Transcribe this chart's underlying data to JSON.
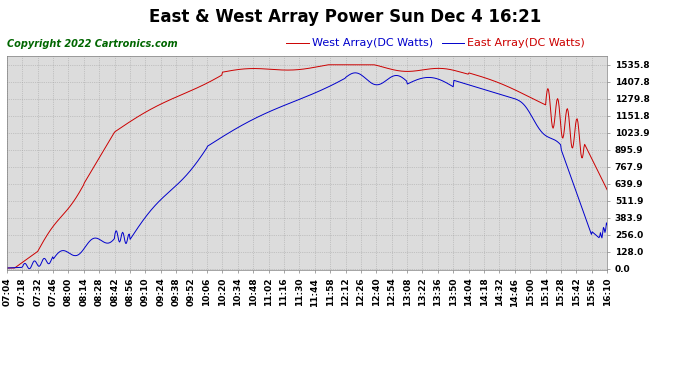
{
  "title": "East & West Array Power Sun Dec 4 16:21",
  "copyright": "Copyright 2022 Cartronics.com",
  "legend_east": "East Array(DC Watts)",
  "legend_west": "West Array(DC Watts)",
  "east_color": "#0000cc",
  "west_color": "#cc0000",
  "background_color": "#ffffff",
  "plot_bg_color": "#dcdcdc",
  "grid_color": "#aaaaaa",
  "yticks": [
    0.0,
    128.0,
    256.0,
    383.9,
    511.9,
    639.9,
    767.9,
    895.9,
    1023.9,
    1151.8,
    1279.8,
    1407.8,
    1535.8
  ],
  "ylim": [
    0,
    1535.8
  ],
  "xtick_labels": [
    "07:04",
    "07:18",
    "07:32",
    "07:46",
    "08:00",
    "08:14",
    "08:28",
    "08:42",
    "08:56",
    "09:10",
    "09:24",
    "09:38",
    "09:52",
    "10:06",
    "10:20",
    "10:34",
    "10:48",
    "11:02",
    "11:16",
    "11:30",
    "11:44",
    "11:58",
    "12:12",
    "12:26",
    "12:40",
    "12:54",
    "13:08",
    "13:22",
    "13:36",
    "13:50",
    "14:04",
    "14:18",
    "14:32",
    "14:46",
    "15:00",
    "15:14",
    "15:28",
    "15:42",
    "15:56",
    "16:10"
  ],
  "title_fontsize": 12,
  "copyright_fontsize": 7,
  "legend_fontsize": 8,
  "tick_fontsize": 6.5
}
